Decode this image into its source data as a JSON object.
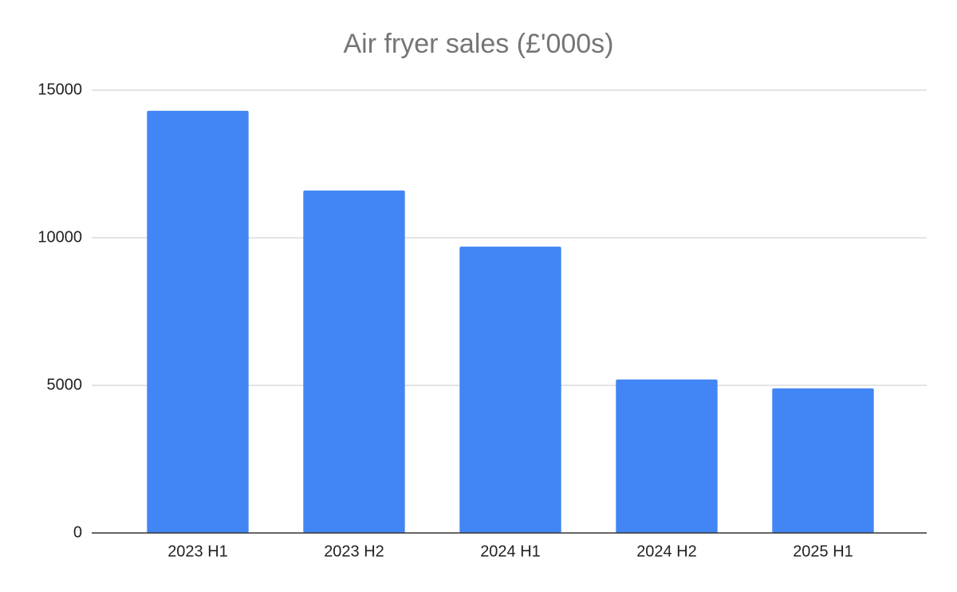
{
  "chart_data": {
    "type": "bar",
    "title": "Air fryer sales (£'000s)",
    "categories": [
      "2023 H1",
      "2023 H2",
      "2024 H1",
      "2024 H2",
      "2025 H1"
    ],
    "values": [
      14300,
      11600,
      9700,
      5200,
      4900
    ],
    "color": "#4285f4",
    "ylim": [
      0,
      15000
    ],
    "yticks": [
      0,
      5000,
      10000,
      15000
    ],
    "grid": true
  }
}
